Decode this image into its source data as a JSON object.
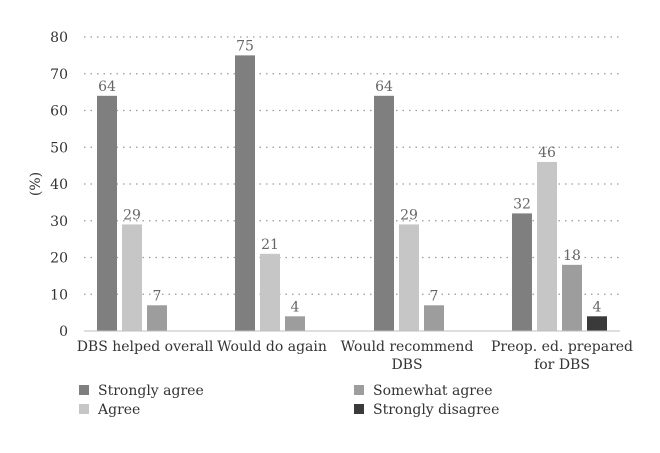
{
  "chart_data": {
    "type": "bar",
    "ylabel": "(%)",
    "xlabel": "",
    "ylim": [
      0,
      80
    ],
    "yticks": [
      0,
      10,
      20,
      30,
      40,
      50,
      60,
      70,
      80
    ],
    "grid": "horizontal-dotted",
    "legend_position": "bottom",
    "categories": [
      [
        "DBS helped overall"
      ],
      [
        "Would do again"
      ],
      [
        "Would recommend",
        "DBS"
      ],
      [
        "Preop. ed. prepared",
        "for DBS"
      ]
    ],
    "series": [
      {
        "name": "Strongly agree",
        "color": "#7f7f7f",
        "values": [
          64,
          75,
          64,
          32
        ]
      },
      {
        "name": "Agree",
        "color": "#c6c6c6",
        "values": [
          29,
          21,
          29,
          46
        ]
      },
      {
        "name": "Somewhat agree",
        "color": "#9d9d9d",
        "values": [
          7,
          4,
          7,
          18
        ]
      },
      {
        "name": "Strongly disagree",
        "color": "#3a3a3a",
        "values": [
          null,
          null,
          null,
          4
        ]
      }
    ]
  }
}
